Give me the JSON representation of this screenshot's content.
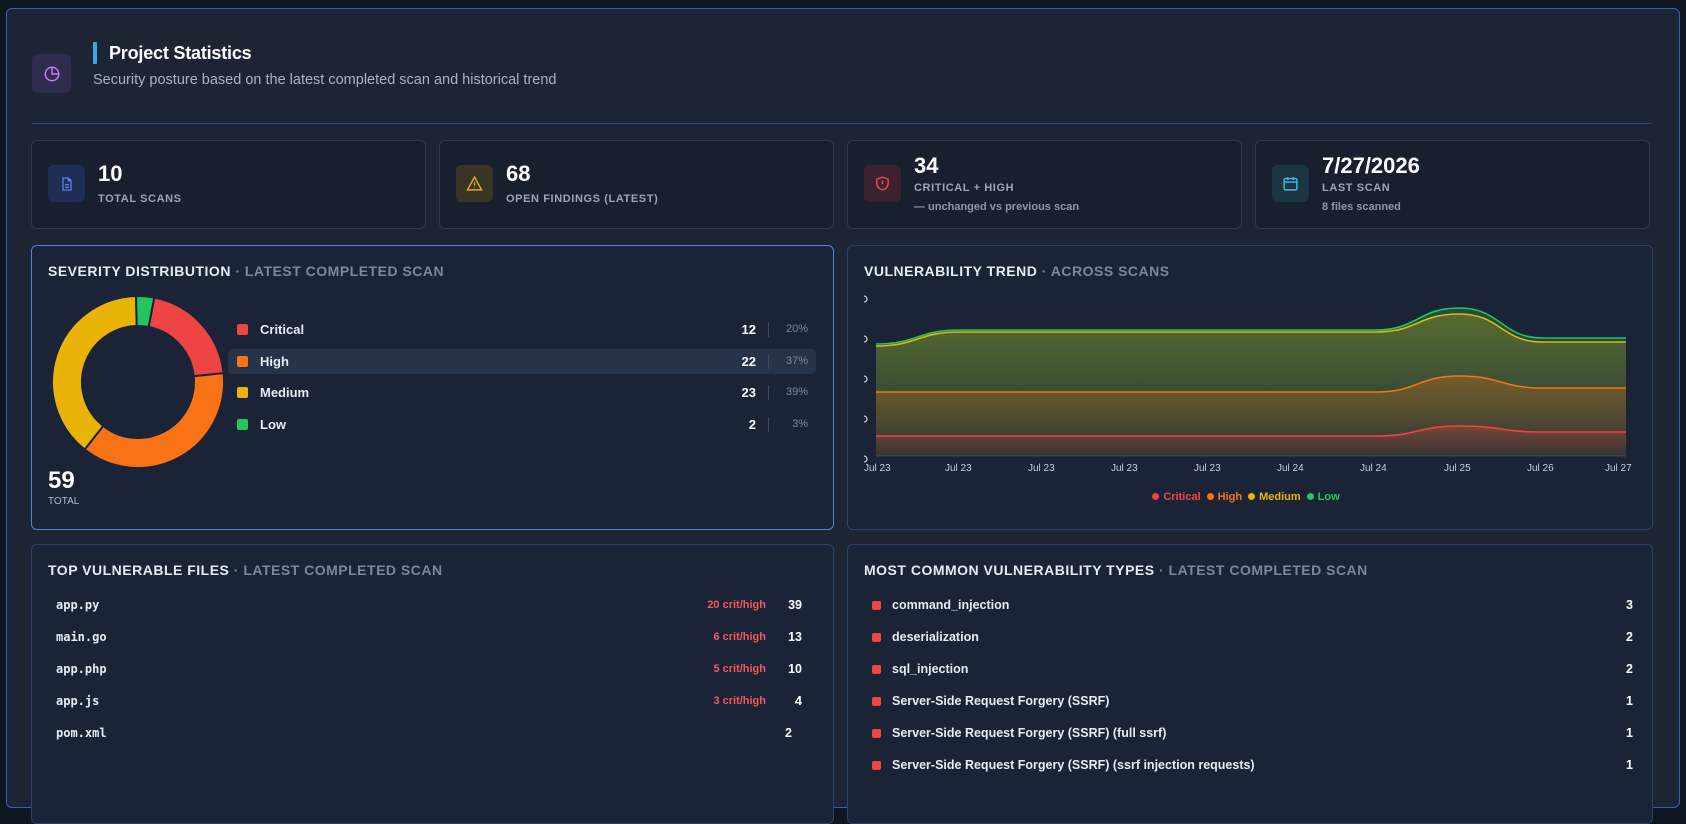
{
  "header": {
    "title": "Project Statistics",
    "subtitle": "Security posture based on the latest completed scan and historical trend",
    "icon": "chart-pie-icon"
  },
  "stats": [
    {
      "value": "10",
      "label": "TOTAL SCANS",
      "note": "",
      "icon": "document-icon",
      "color": "#3b6fd8"
    },
    {
      "value": "68",
      "label": "OPEN FINDINGS (LATEST)",
      "note": "",
      "icon": "warning-icon",
      "color": "#e0a12a"
    },
    {
      "value": "34",
      "label": "CRITICAL + HIGH",
      "note": "— unchanged vs previous scan",
      "icon": "shield-alert-icon",
      "color": "#e04848"
    },
    {
      "value": "7/27/2026",
      "label": "LAST SCAN",
      "note": "8 files scanned",
      "icon": "calendar-icon",
      "color": "#3fb8d6"
    }
  ],
  "severity": {
    "title": "SEVERITY DISTRIBUTION",
    "subtitle": "· LATEST COMPLETED SCAN",
    "total_value": "59",
    "total_label": "TOTAL",
    "items": [
      {
        "name": "Critical",
        "count": "12",
        "pct": "20%",
        "color": "#ef4444"
      },
      {
        "name": "High",
        "count": "22",
        "pct": "37%",
        "color": "#f97316"
      },
      {
        "name": "Medium",
        "count": "23",
        "pct": "39%",
        "color": "#eab308"
      },
      {
        "name": "Low",
        "count": "2",
        "pct": "3%",
        "color": "#22c55e"
      }
    ]
  },
  "trend": {
    "title": "VULNERABILITY TREND",
    "subtitle": "· ACROSS SCANS",
    "legend": [
      {
        "name": "Critical",
        "color": "#ef4444"
      },
      {
        "name": "High",
        "color": "#f97316"
      },
      {
        "name": "Medium",
        "color": "#eab308"
      },
      {
        "name": "Low",
        "color": "#22c55e"
      }
    ]
  },
  "chart_data": [
    {
      "type": "pie",
      "labels": [
        "Critical",
        "High",
        "Medium",
        "Low"
      ],
      "values": [
        12,
        22,
        23,
        2
      ],
      "colors": [
        "#ef4444",
        "#f97316",
        "#eab308",
        "#22c55e"
      ],
      "title": "SEVERITY DISTRIBUTION"
    },
    {
      "type": "area",
      "title": "VULNERABILITY TREND",
      "categories": [
        "Jul 23",
        "Jul 23",
        "Jul 23",
        "Jul 23",
        "Jul 23",
        "Jul 24",
        "Jul 24",
        "Jul 25",
        "Jul 26",
        "Jul 27"
      ],
      "series": [
        {
          "name": "Critical",
          "values": [
            10,
            10,
            10,
            10,
            10,
            10,
            10,
            15,
            12,
            12
          ]
        },
        {
          "name": "High",
          "values": [
            22,
            22,
            22,
            22,
            22,
            22,
            22,
            25,
            22,
            22
          ]
        },
        {
          "name": "Medium",
          "values": [
            23,
            30,
            30,
            30,
            30,
            30,
            30,
            31,
            23,
            23
          ]
        },
        {
          "name": "Low",
          "values": [
            1,
            1,
            1,
            1,
            1,
            1,
            1,
            3,
            2,
            2
          ]
        }
      ],
      "stacked": true,
      "ylim": [
        0,
        80
      ],
      "legend": "bottom"
    }
  ],
  "files": {
    "title": "TOP VULNERABLE FILES",
    "subtitle": "· LATEST COMPLETED SCAN",
    "items": [
      {
        "name": "app.py",
        "crit": "20 crit/high",
        "count": "39"
      },
      {
        "name": "main.go",
        "crit": "6 crit/high",
        "count": "13"
      },
      {
        "name": "app.php",
        "crit": "5 crit/high",
        "count": "10"
      },
      {
        "name": "app.js",
        "crit": "3 crit/high",
        "count": "4"
      },
      {
        "name": "pom.xml",
        "crit": "",
        "count": "2"
      }
    ]
  },
  "types": {
    "title": "MOST COMMON VULNERABILITY TYPES",
    "subtitle": "· LATEST COMPLETED SCAN",
    "items": [
      {
        "name": "command_injection",
        "count": "3"
      },
      {
        "name": "deserialization",
        "count": "2"
      },
      {
        "name": "sql_injection",
        "count": "2"
      },
      {
        "name": "Server-Side Request Forgery (SSRF)",
        "count": "1"
      },
      {
        "name": "Server-Side Request Forgery (SSRF) (full ssrf)",
        "count": "1"
      },
      {
        "name": "Server-Side Request Forgery (SSRF) (ssrf injection requests)",
        "count": "1"
      }
    ]
  }
}
